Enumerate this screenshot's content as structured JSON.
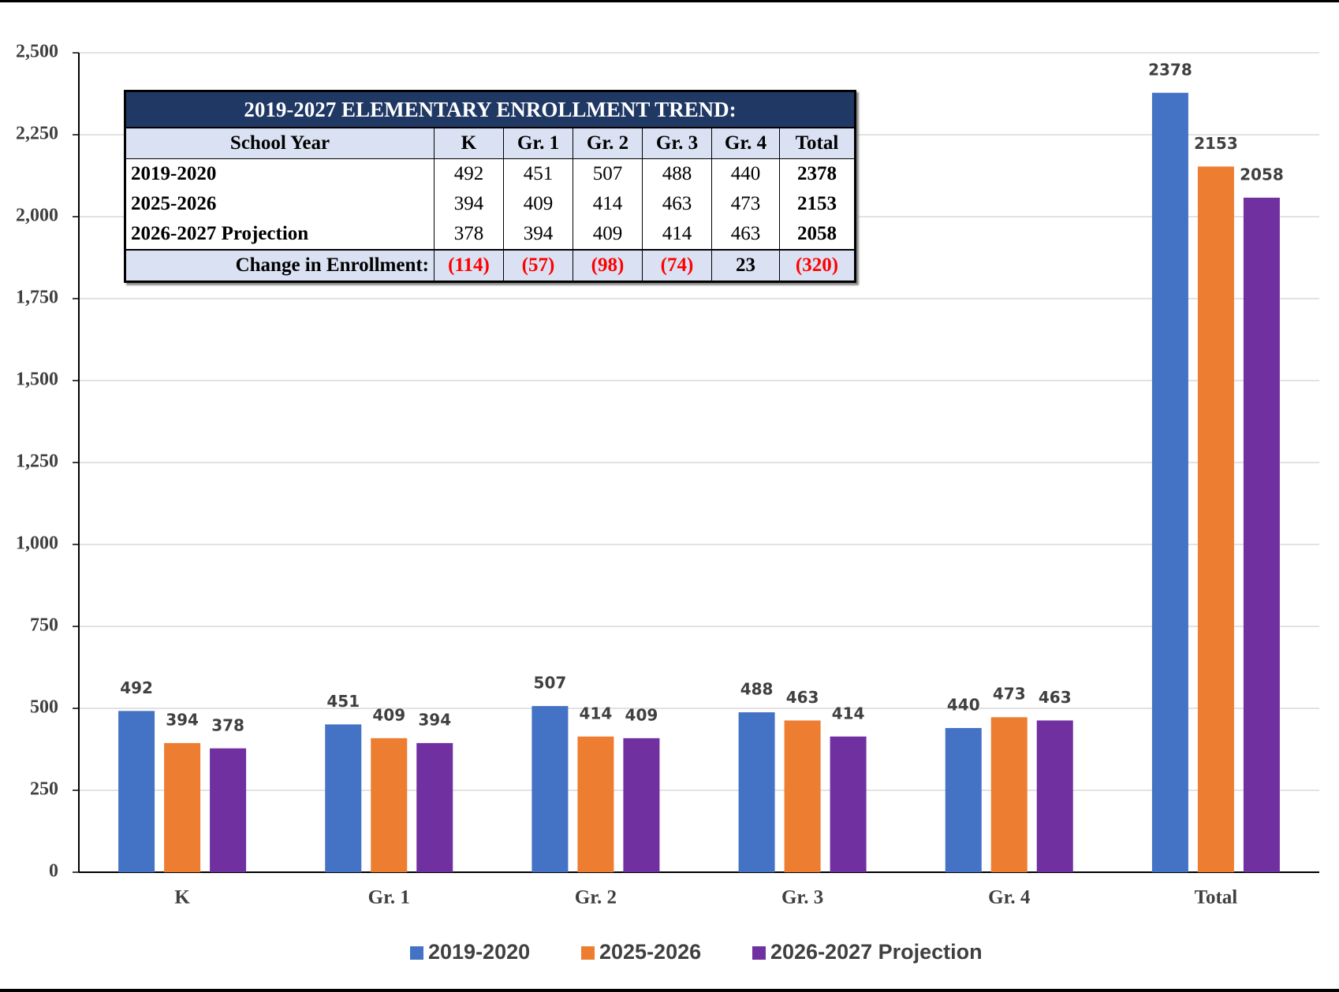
{
  "chart_data": {
    "type": "bar",
    "categories": [
      "K",
      "Gr. 1",
      "Gr. 2",
      "Gr. 3",
      "Gr. 4",
      "Total"
    ],
    "series": [
      {
        "name": "2019-2020",
        "color": "#4472c4",
        "values": [
          492,
          451,
          507,
          488,
          440,
          2378
        ]
      },
      {
        "name": "2025-2026",
        "color": "#ed7d31",
        "values": [
          394,
          409,
          414,
          463,
          473,
          2153
        ]
      },
      {
        "name": "2026-2027 Projection",
        "color": "#7030a0",
        "values": [
          378,
          394,
          409,
          414,
          463,
          2058
        ]
      }
    ],
    "ylim": [
      0,
      2500
    ],
    "yticks": [
      0,
      250,
      500,
      750,
      {
        "value": 1000,
        "label": "1,000"
      },
      {
        "value": 1250,
        "label": "1,250"
      },
      {
        "value": 1500,
        "label": "1,500"
      },
      {
        "value": 1750,
        "label": "1,750"
      },
      {
        "value": 2000,
        "label": "2,000"
      },
      {
        "value": 2250,
        "label": "2,250"
      },
      {
        "value": 2500,
        "label": "2,500"
      }
    ],
    "grid": true,
    "legend": "bottom"
  },
  "table": {
    "title": "2019-2027 ELEMENTARY ENROLLMENT TREND:",
    "header": [
      "School Year",
      "K",
      "Gr. 1",
      "Gr. 2",
      "Gr. 3",
      "Gr. 4",
      "Total"
    ],
    "rows": [
      [
        "2019-2020",
        "492",
        "451",
        "507",
        "488",
        "440",
        "2378"
      ],
      [
        "2025-2026",
        "394",
        "409",
        "414",
        "463",
        "473",
        "2153"
      ],
      [
        "2026-2027 Projection",
        "378",
        "394",
        "409",
        "414",
        "463",
        "2058"
      ],
      [
        "Change in Enrollment:",
        "(114)",
        "(57)",
        "(98)",
        "(74)",
        "23",
        "(320)"
      ]
    ]
  }
}
